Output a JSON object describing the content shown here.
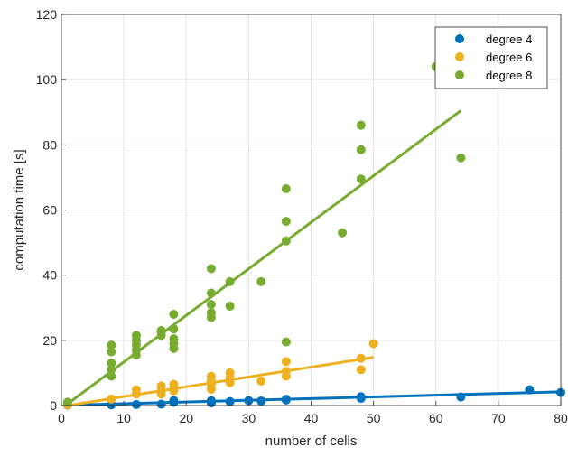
{
  "chart_data": {
    "type": "scatter",
    "title": "",
    "xlabel": "number of cells",
    "ylabel": "computation time [s]",
    "xlim": [
      0,
      80
    ],
    "ylim": [
      0,
      120
    ],
    "xticks": [
      0,
      10,
      20,
      30,
      40,
      50,
      60,
      70,
      80
    ],
    "yticks": [
      0,
      20,
      40,
      60,
      80,
      100,
      120
    ],
    "grid": true,
    "legend_position": "top-right",
    "series": [
      {
        "name": "degree 4",
        "color": "#0072BD",
        "points": [
          [
            1,
            0.1
          ],
          [
            8,
            0.2
          ],
          [
            12,
            0.3
          ],
          [
            16,
            0.4
          ],
          [
            18,
            1.0
          ],
          [
            18,
            1.5
          ],
          [
            24,
            0.8
          ],
          [
            24,
            1.5
          ],
          [
            27,
            1.2
          ],
          [
            30,
            1.5
          ],
          [
            32,
            1.4
          ],
          [
            36,
            1.7
          ],
          [
            36,
            1.9
          ],
          [
            48,
            2.2
          ],
          [
            48,
            2.7
          ],
          [
            64,
            2.6
          ],
          [
            75,
            4.8
          ],
          [
            80,
            4.0
          ]
        ],
        "fit": [
          [
            1,
            0.1
          ],
          [
            80,
            4.2
          ]
        ]
      },
      {
        "name": "degree 6",
        "color": "#EDB120",
        "points": [
          [
            1,
            0.2
          ],
          [
            8,
            2.0
          ],
          [
            12,
            3.5
          ],
          [
            12,
            4.8
          ],
          [
            16,
            3.5
          ],
          [
            16,
            4.5
          ],
          [
            16,
            6.0
          ],
          [
            18,
            4.5
          ],
          [
            18,
            5.5
          ],
          [
            18,
            6.5
          ],
          [
            24,
            5.0
          ],
          [
            24,
            6.5
          ],
          [
            24,
            7.5
          ],
          [
            24,
            9.0
          ],
          [
            27,
            7.0
          ],
          [
            27,
            8.5
          ],
          [
            27,
            10.0
          ],
          [
            32,
            7.5
          ],
          [
            36,
            9.0
          ],
          [
            36,
            10.5
          ],
          [
            36,
            13.5
          ],
          [
            48,
            11.0
          ],
          [
            48,
            14.5
          ],
          [
            50,
            19.0
          ]
        ],
        "fit": [
          [
            1,
            0.0
          ],
          [
            50,
            14.8
          ]
        ]
      },
      {
        "name": "degree 8",
        "color": "#77AC30",
        "points": [
          [
            1,
            1.0
          ],
          [
            8,
            9.0
          ],
          [
            8,
            11.0
          ],
          [
            8,
            13.0
          ],
          [
            8,
            16.5
          ],
          [
            8,
            18.5
          ],
          [
            12,
            15.5
          ],
          [
            12,
            17.0
          ],
          [
            12,
            18.5
          ],
          [
            12,
            20.0
          ],
          [
            12,
            21.5
          ],
          [
            16,
            21.5
          ],
          [
            16,
            22.5
          ],
          [
            16,
            23.0
          ],
          [
            18,
            17.5
          ],
          [
            18,
            19.0
          ],
          [
            18,
            20.5
          ],
          [
            18,
            23.5
          ],
          [
            18,
            28.0
          ],
          [
            24,
            27.0
          ],
          [
            24,
            28.5
          ],
          [
            24,
            31.0
          ],
          [
            24,
            34.5
          ],
          [
            24,
            42.0
          ],
          [
            27,
            30.5
          ],
          [
            27,
            38.0
          ],
          [
            32,
            38.0
          ],
          [
            36,
            19.5
          ],
          [
            36,
            50.5
          ],
          [
            36,
            56.5
          ],
          [
            36,
            66.5
          ],
          [
            45,
            53.0
          ],
          [
            48,
            69.5
          ],
          [
            48,
            78.5
          ],
          [
            48,
            86.0
          ],
          [
            60,
            104.0
          ],
          [
            64,
            76.0
          ]
        ],
        "fit": [
          [
            1,
            0.5
          ],
          [
            64,
            90.5
          ]
        ]
      }
    ]
  }
}
